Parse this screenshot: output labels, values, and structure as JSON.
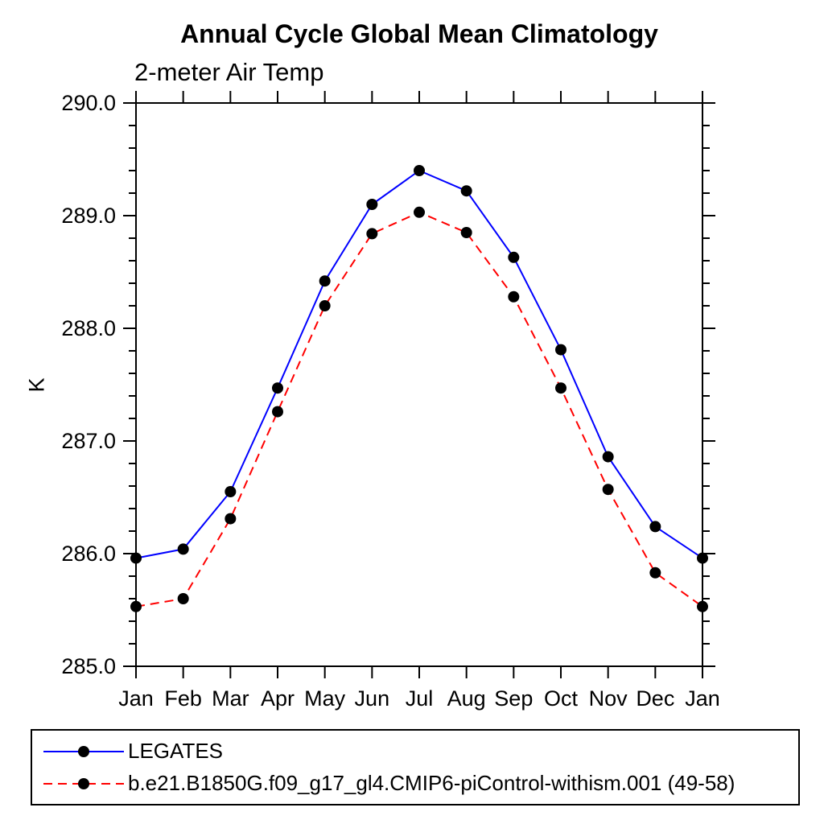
{
  "chart_data": {
    "type": "line",
    "title": "Annual Cycle Global Mean Climatology",
    "subtitle": "2-meter Air Temp",
    "ylabel": "K",
    "xlabel": "",
    "x_ticklabels": [
      "Jan",
      "Feb",
      "Mar",
      "Apr",
      "May",
      "Jun",
      "Jul",
      "Aug",
      "Sep",
      "Oct",
      "Nov",
      "Dec",
      "Jan"
    ],
    "ylim": [
      285.0,
      290.0
    ],
    "y_major_step": 1.0,
    "y_minor_step": 0.2,
    "y_tick_labels": [
      "285.0",
      "286.0",
      "287.0",
      "288.0",
      "289.0",
      "290.0"
    ],
    "grid": false,
    "legend_position": "bottom",
    "frame_color": "#000000",
    "series": [
      {
        "name": "LEGATES",
        "color": "#0000ff",
        "style": "solid",
        "marker": "circle",
        "marker_color": "#000000",
        "values": [
          285.96,
          286.04,
          286.55,
          287.47,
          288.42,
          289.1,
          289.4,
          289.22,
          288.63,
          287.81,
          286.86,
          286.24,
          285.96
        ]
      },
      {
        "name": "b.e21.B1850G.f09_g17_gl4.CMIP6-piControl-withism.001 (49-58)",
        "color": "#ff0000",
        "style": "dashed",
        "marker": "circle",
        "marker_color": "#000000",
        "values": [
          285.53,
          285.6,
          286.31,
          287.26,
          288.2,
          288.84,
          289.03,
          288.85,
          288.28,
          287.47,
          286.57,
          285.83,
          285.53
        ]
      }
    ]
  }
}
